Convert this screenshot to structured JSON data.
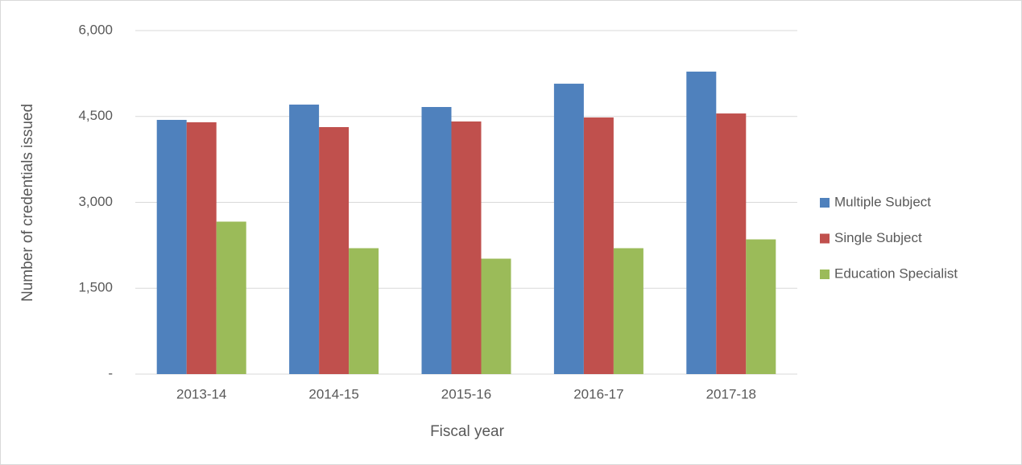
{
  "chart_data": {
    "type": "bar",
    "x_label": "Fiscal year",
    "y_label": "Number of credentials issued",
    "categories": [
      "2013-14",
      "2014-15",
      "2015-16",
      "2016-17",
      "2017-18"
    ],
    "series": [
      {
        "name": "Multiple Subject",
        "color": "#4f81bd",
        "values": [
          4440,
          4707,
          4665,
          5072,
          5283
        ]
      },
      {
        "name": "Single Subject",
        "color": "#c0504d",
        "values": [
          4398,
          4314,
          4412,
          4482,
          4552
        ]
      },
      {
        "name": "Education Specialist",
        "color": "#9bbb59",
        "values": [
          2663,
          2199,
          2016,
          2199,
          2353
        ]
      }
    ],
    "ylim": [
      0,
      6000
    ],
    "yticks": [
      {
        "value": 0,
        "label": "-"
      },
      {
        "value": 1500,
        "label": "1,500"
      },
      {
        "value": 3000,
        "label": "3,000"
      },
      {
        "value": 4500,
        "label": "4,500"
      },
      {
        "value": 6000,
        "label": "6,000"
      }
    ],
    "grid": true,
    "legend": "right"
  }
}
